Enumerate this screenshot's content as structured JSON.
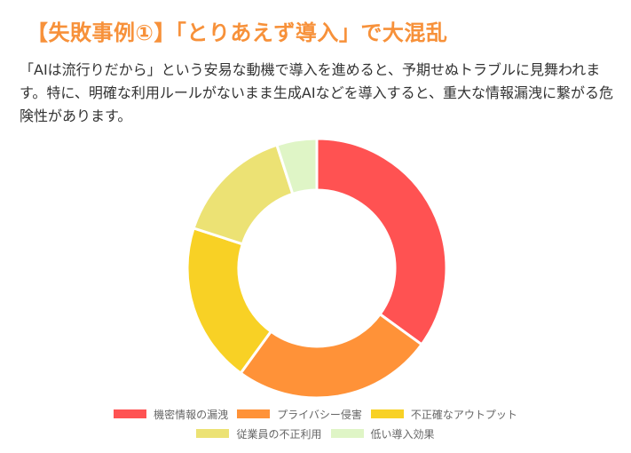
{
  "heading": {
    "title": "【失敗事例①】「とりあえず導入」で大混乱"
  },
  "body": {
    "lines": [
      "「AIは流行りだから」という安易な動機で導入を進めると、予期せぬトラブルに見舞われま",
      "す。特に、明確な利用ルールがないまま生成AIなどを導入すると、重大な情報漏洩に繋がる危",
      "険性があります。"
    ]
  },
  "chart_data": {
    "type": "pie",
    "variant": "doughnut",
    "title": "",
    "categories": [
      "機密情報の漏洩",
      "プライバシー侵害",
      "不正確なアウトプット",
      "従業員の不正利用",
      "低い導入効果"
    ],
    "values": [
      35,
      25,
      20,
      15,
      5
    ],
    "colors": [
      "#FF5252",
      "#FF9238",
      "#F8D125",
      "#ECE274",
      "#DFF5C6"
    ],
    "legend_position": "bottom",
    "start_angle": "top",
    "direction": "clockwise"
  },
  "legend": {
    "items": [
      {
        "label": "機密情報の漏洩",
        "color": "#FF5252"
      },
      {
        "label": "プライバシー侵害",
        "color": "#FF9238"
      },
      {
        "label": "不正確なアウトプット",
        "color": "#F8D125"
      },
      {
        "label": "従業員の不正利用",
        "color": "#ECE274"
      },
      {
        "label": "低い導入効果",
        "color": "#DFF5C6"
      }
    ]
  }
}
